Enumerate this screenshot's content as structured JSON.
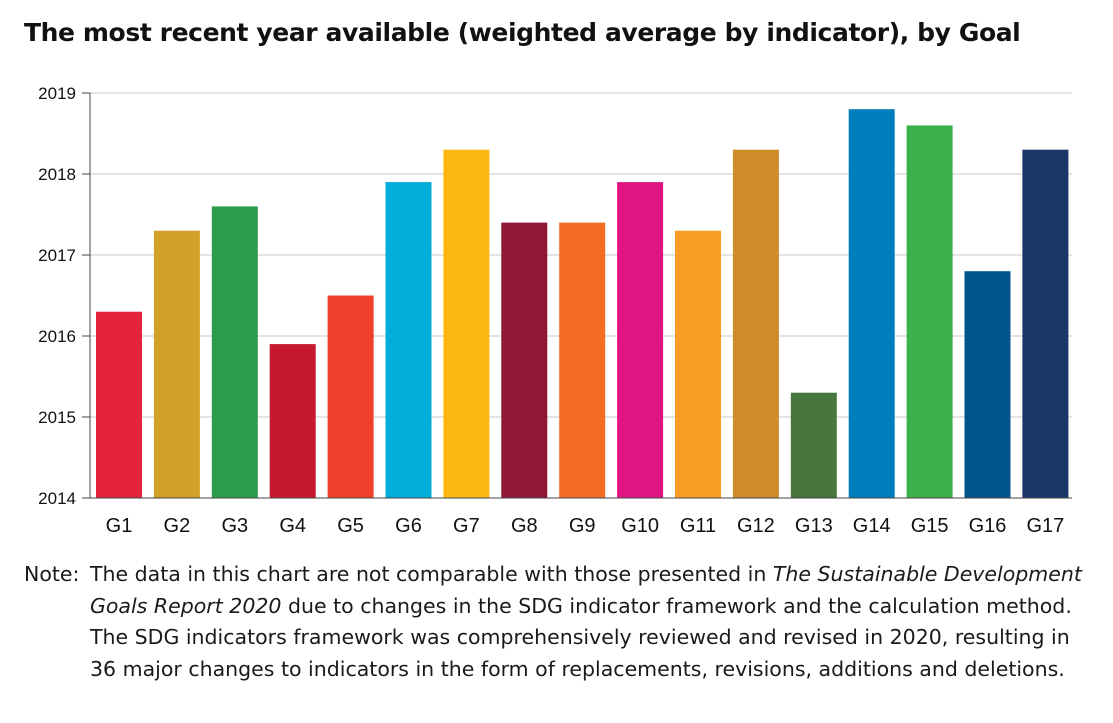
{
  "chart_data": {
    "type": "bar",
    "title": "The most recent year available (weighted average by indicator), by Goal",
    "xlabel": "",
    "ylabel": "",
    "ylim": [
      2014,
      2019
    ],
    "y_ticks": [
      "2014",
      "2015",
      "2016",
      "2017",
      "2018",
      "2019"
    ],
    "grid": true,
    "categories": [
      "G1",
      "G2",
      "G3",
      "G4",
      "G5",
      "G6",
      "G7",
      "G8",
      "G9",
      "G10",
      "G11",
      "G12",
      "G13",
      "G14",
      "G15",
      "G16",
      "G17"
    ],
    "values": [
      2016.3,
      2017.3,
      2017.6,
      2015.9,
      2016.5,
      2017.9,
      2018.3,
      2017.4,
      2017.4,
      2017.9,
      2017.3,
      2018.3,
      2015.3,
      2018.8,
      2018.6,
      2016.8,
      2018.3
    ],
    "colors": [
      "#e5243b",
      "#d3a029",
      "#2c9b4a",
      "#c5192d",
      "#ef402c",
      "#00aed9",
      "#fdb713",
      "#8f1838",
      "#f36d25",
      "#e11484",
      "#f99d26",
      "#cf8d2a",
      "#48773e",
      "#007dbc",
      "#3eb049",
      "#02558b",
      "#1a3668"
    ]
  },
  "note": {
    "prefix": "Note:",
    "text_before": "The data in this chart are not comparable with those presented in ",
    "report_title": "The Sustainable Development Goals Report 2020",
    "text_after": " due to changes in the SDG indicator framework and the calculation method. The SDG indicators framework was comprehensively reviewed and revised in 2020, resulting in 36 major changes to indicators in the form of replacements, revisions, additions and deletions."
  }
}
